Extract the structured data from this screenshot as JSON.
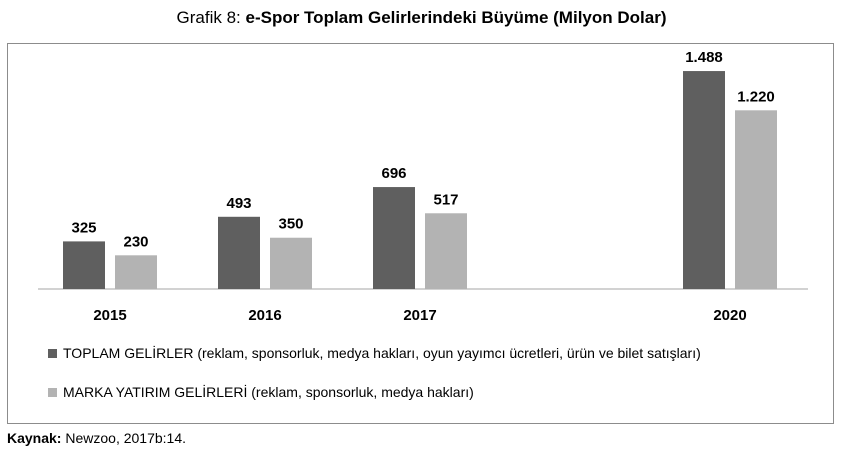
{
  "title": {
    "prefix": "Grafik 8:",
    "main": "e-Spor Toplam Gelirlerindeki Büyüme (Milyon Dolar)"
  },
  "source": {
    "label": "Kaynak:",
    "text": "Newzoo, 2017b:14."
  },
  "chart_data": {
    "type": "bar",
    "categories": [
      "2015",
      "2016",
      "2017",
      "2020"
    ],
    "series": [
      {
        "name": "TOPLAM GELİRLER (reklam, sponsorluk, medya hakları, oyun yayımcı ücretleri, ürün ve bilet satışları)",
        "values": [
          325,
          493,
          696,
          1488
        ],
        "labels": [
          "325",
          "493",
          "696",
          "1.488"
        ],
        "color": "#5f5f5f"
      },
      {
        "name": "MARKA YATIRIM GELİRLERİ (reklam, sponsorluk, medya hakları)",
        "values": [
          230,
          350,
          517,
          1220
        ],
        "labels": [
          "230",
          "350",
          "517",
          "1.220"
        ],
        "color": "#b3b3b3"
      }
    ],
    "ylim": [
      0,
      1700
    ],
    "grid": false,
    "legend_placement": "bottom-left"
  }
}
